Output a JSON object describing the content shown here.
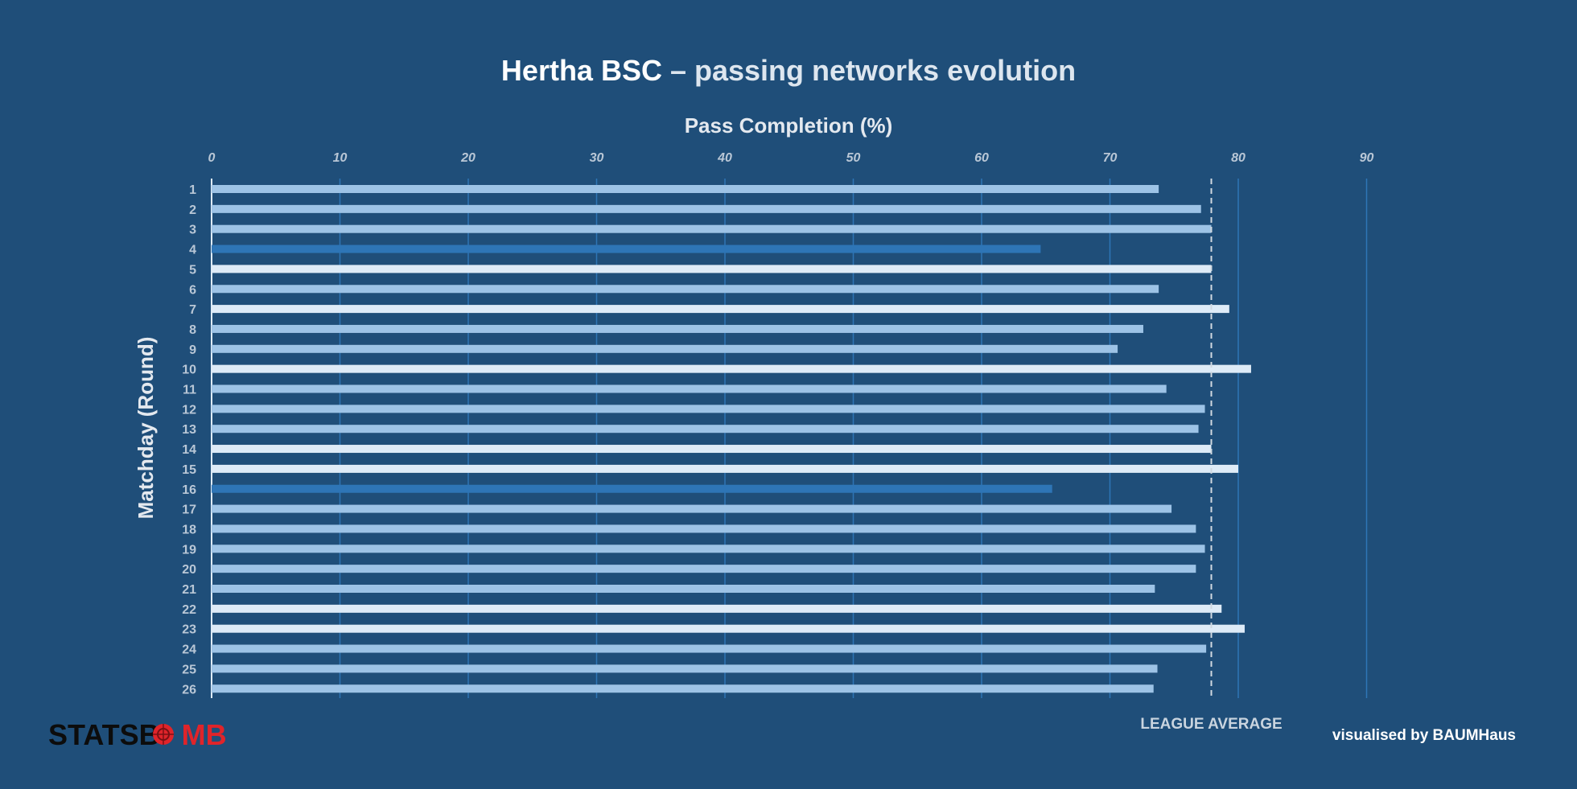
{
  "chart_data": {
    "type": "bar",
    "orientation": "horizontal",
    "title": {
      "team": "Hertha BSC",
      "rest": " – passing networks evolution"
    },
    "xlabel": "Pass Completion (%)",
    "ylabel": "Matchday (Round)",
    "xlim": [
      0,
      90
    ],
    "xticks": [
      0,
      10,
      20,
      30,
      40,
      50,
      60,
      70,
      80,
      90
    ],
    "categories": [
      "1",
      "2",
      "3",
      "4",
      "5",
      "6",
      "7",
      "8",
      "9",
      "10",
      "11",
      "12",
      "13",
      "14",
      "15",
      "16",
      "17",
      "18",
      "19",
      "20",
      "21",
      "22",
      "23",
      "24",
      "25",
      "26"
    ],
    "values": [
      73.8,
      77.1,
      77.9,
      64.6,
      77.9,
      73.8,
      79.3,
      72.6,
      70.6,
      81.0,
      74.4,
      77.4,
      76.9,
      77.9,
      80.0,
      65.5,
      74.8,
      76.7,
      77.4,
      76.7,
      73.5,
      78.7,
      80.5,
      77.5,
      73.7,
      73.4
    ],
    "highlight": [
      "below",
      "below",
      "below",
      "low",
      "high",
      "below",
      "high",
      "below",
      "below",
      "high",
      "below",
      "below",
      "below",
      "high",
      "high",
      "low",
      "below",
      "below",
      "below",
      "below",
      "below",
      "high",
      "high",
      "below",
      "below",
      "below"
    ],
    "reference_line": {
      "value": 77.9,
      "label": "LEAGUE AVERAGE",
      "style": "dashed"
    },
    "grid": true
  },
  "colors": {
    "background": "#1f4e79",
    "below": "#9dc3e6",
    "low": "#2e75b6",
    "high": "#deebf7",
    "grid": "#2e75b6",
    "reference": "#d0d8e0"
  },
  "footer": {
    "logo_part1": "STATSB",
    "logo_part2": "MB",
    "logo_icon": "bomb-icon",
    "credit": "visualised by BAUMHaus"
  }
}
